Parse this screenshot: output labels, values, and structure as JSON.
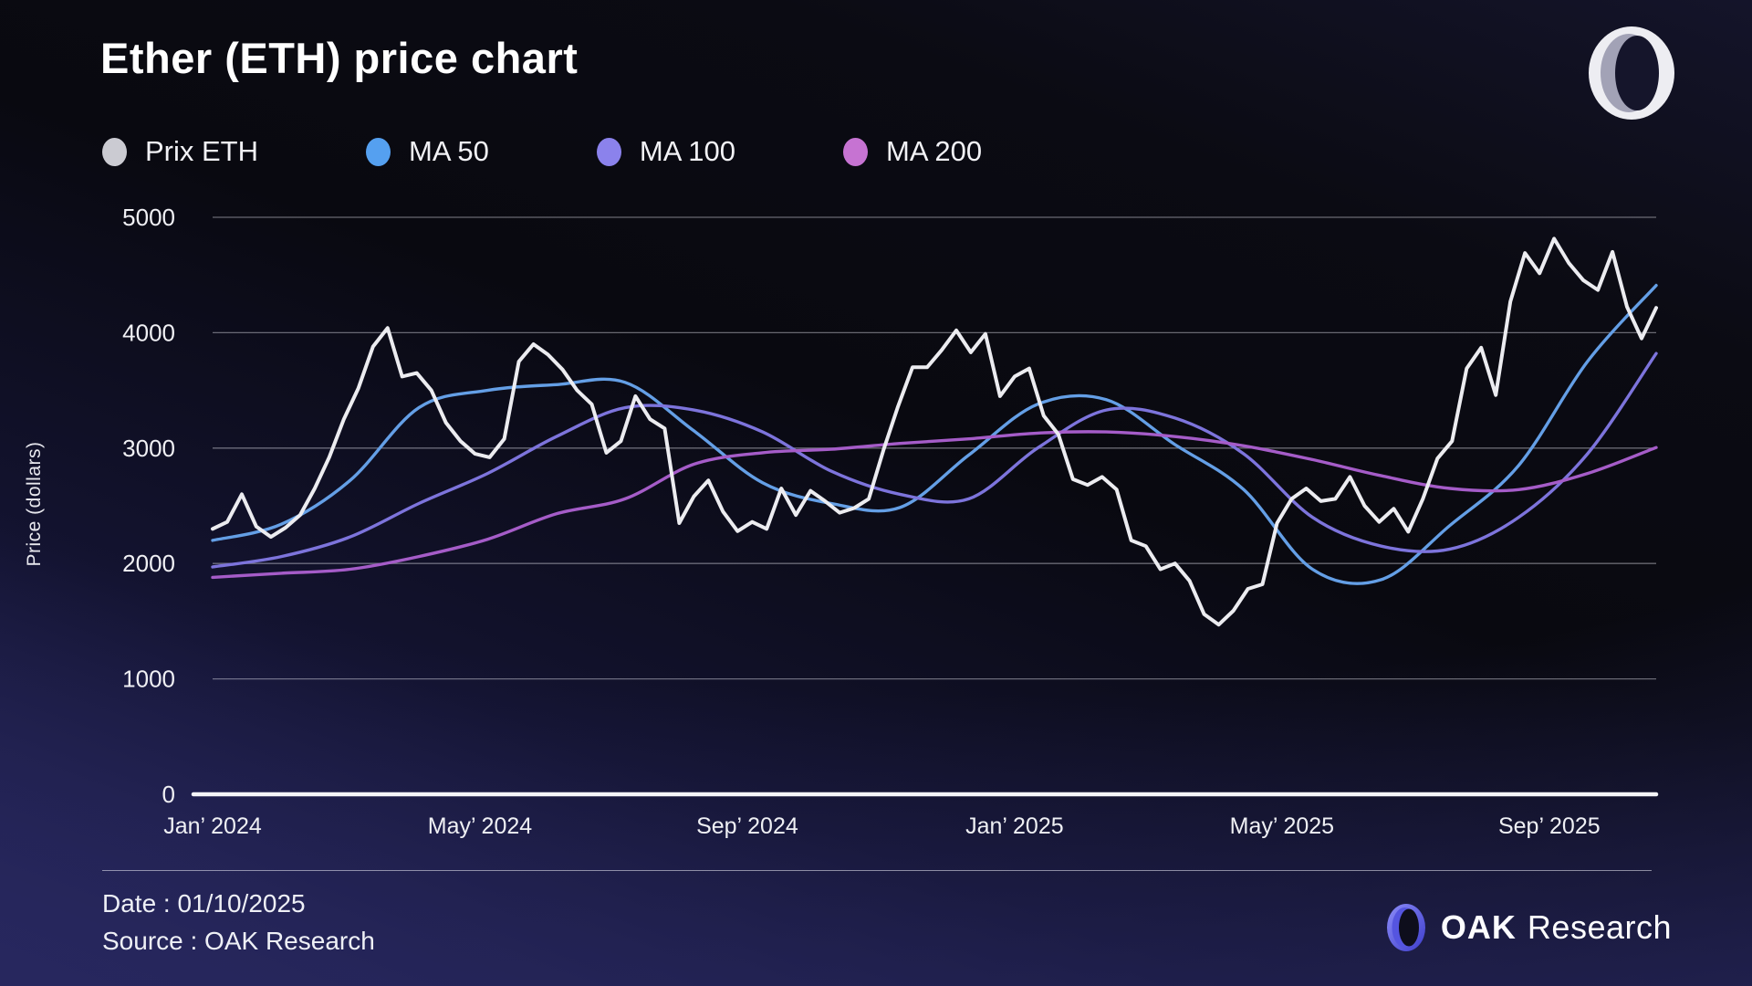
{
  "header": {
    "title": "Ether (ETH) price chart"
  },
  "legend": {
    "items": [
      {
        "label": "Prix ETH",
        "color": "#cbcbd2"
      },
      {
        "label": "MA 50",
        "color": "#55a0f0"
      },
      {
        "label": "MA 100",
        "color": "#8b82ec"
      },
      {
        "label": "MA 200",
        "color": "#c673d2"
      }
    ]
  },
  "chart_data": {
    "type": "line",
    "title": "Ether (ETH) price chart",
    "xlabel": "",
    "ylabel": "Price (dollars)",
    "ylim": [
      0,
      5000
    ],
    "y_ticks": [
      0,
      1000,
      2000,
      3000,
      4000,
      5000
    ],
    "x_tick_labels": [
      "Jan’ 2024",
      "May’ 2024",
      "Sep’ 2024",
      "Jan’ 2025",
      "May’ 2025",
      "Sep’ 2025"
    ],
    "x_tick_positions_months": [
      0,
      4,
      8,
      12,
      16,
      20
    ],
    "x_range_months": [
      0,
      21.6
    ],
    "grid": "horizontal",
    "legend_position": "top",
    "series": [
      {
        "name": "Prix ETH",
        "color": "#ececf0",
        "width": 4,
        "smooth": false,
        "values": [
          2300,
          2360,
          2600,
          2320,
          2230,
          2310,
          2420,
          2650,
          2920,
          3250,
          3520,
          3880,
          4040,
          3620,
          3650,
          3500,
          3220,
          3060,
          2950,
          2920,
          3080,
          3750,
          3900,
          3810,
          3680,
          3500,
          3380,
          2960,
          3060,
          3450,
          3250,
          3170,
          2350,
          2580,
          2720,
          2450,
          2280,
          2360,
          2300,
          2650,
          2420,
          2630,
          2540,
          2440,
          2480,
          2560,
          2980,
          3360,
          3700,
          3700,
          3850,
          4020,
          3830,
          3990,
          3450,
          3620,
          3690,
          3280,
          3120,
          2730,
          2680,
          2750,
          2640,
          2200,
          2150,
          1950,
          2000,
          1850,
          1560,
          1470,
          1590,
          1780,
          1820,
          2350,
          2560,
          2650,
          2540,
          2560,
          2750,
          2500,
          2360,
          2475,
          2275,
          2560,
          2910,
          3060,
          3690,
          3870,
          3460,
          4270,
          4690,
          4515,
          4815,
          4605,
          4455,
          4370,
          4700,
          4225,
          3950,
          4215
        ]
      },
      {
        "name": "MA 50",
        "color": "#649fe6",
        "width": 3.4,
        "smooth": true,
        "values": [
          2200,
          2340,
          2720,
          3350,
          3500,
          3550,
          3570,
          3150,
          2700,
          2520,
          2485,
          2940,
          3380,
          3420,
          3030,
          2640,
          1950,
          1860,
          2330,
          2850,
          3750,
          4410
        ]
      },
      {
        "name": "MA 100",
        "color": "#7d74dc",
        "width": 3.4,
        "smooth": true,
        "values": [
          1970,
          2060,
          2230,
          2520,
          2780,
          3100,
          3350,
          3330,
          3140,
          2800,
          2600,
          2560,
          3000,
          3330,
          3260,
          2950,
          2400,
          2150,
          2125,
          2400,
          2950,
          3820
        ]
      },
      {
        "name": "MA 200",
        "color": "#a55cc8",
        "width": 3.4,
        "smooth": true,
        "values": [
          1880,
          1915,
          1950,
          2060,
          2210,
          2430,
          2560,
          2860,
          2960,
          2990,
          3040,
          3080,
          3130,
          3140,
          3100,
          3020,
          2900,
          2760,
          2650,
          2640,
          2780,
          3005
        ]
      }
    ]
  },
  "footer": {
    "date_label": "Date : 01/10/2025",
    "source_label": "Source : OAK Research",
    "brand_bold": "OAK",
    "brand_regular": "Research"
  }
}
